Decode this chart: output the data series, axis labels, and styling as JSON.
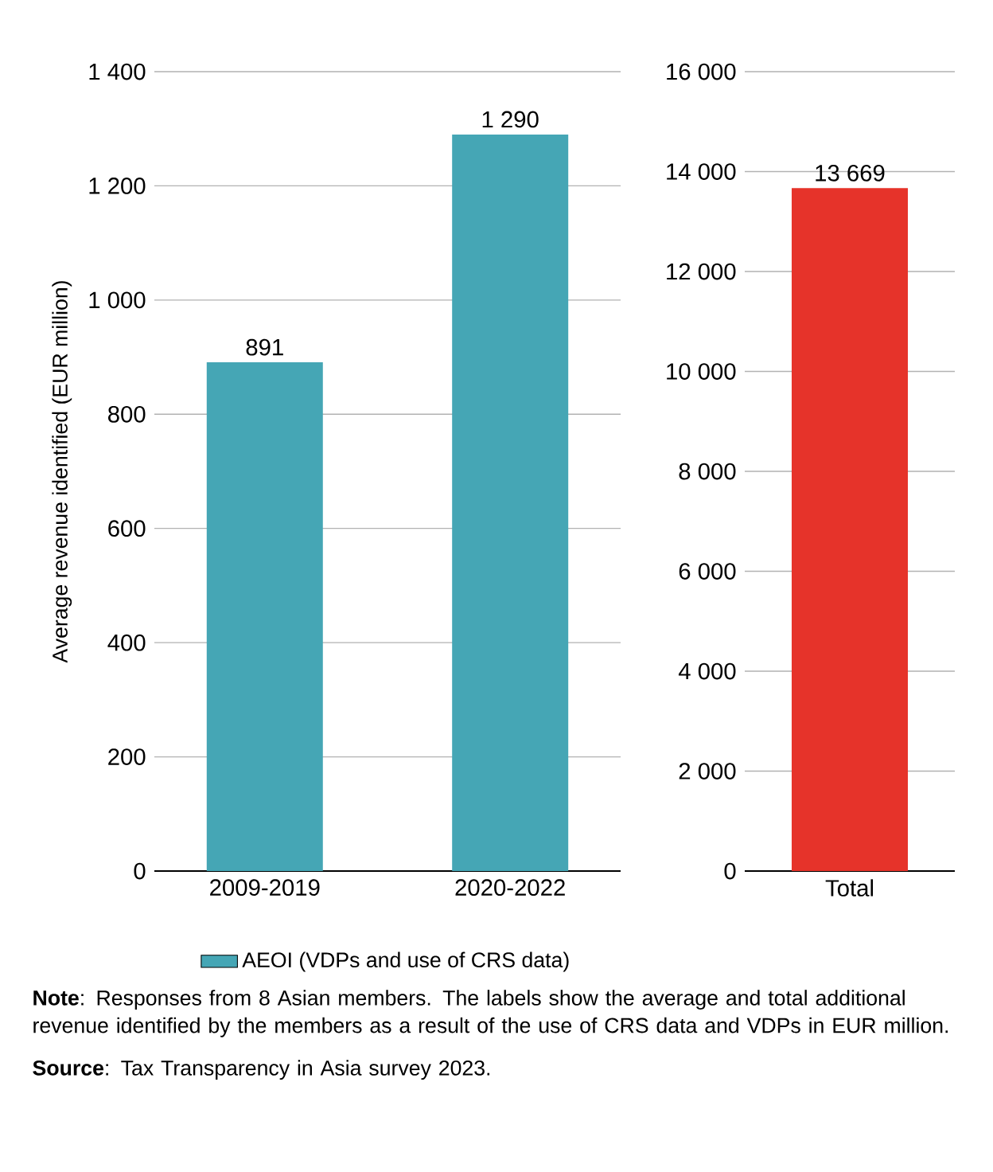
{
  "chart_data": [
    {
      "type": "bar",
      "categories": [
        "2009-2019",
        "2020-2022"
      ],
      "ylabel": "Average revenue identified (EUR million)",
      "series": [
        {
          "name": "AEOI (VDPs and use of CRS data)",
          "color": "#45a6b5",
          "values": [
            891,
            1290
          ],
          "value_labels": [
            "891",
            "1 290"
          ]
        }
      ],
      "ylim": [
        0,
        1400
      ],
      "yticks": [
        0,
        200,
        400,
        600,
        800,
        {
          "value": 1000,
          "label": "1 000"
        },
        {
          "value": 1200,
          "label": "1 200"
        },
        {
          "value": 1400,
          "label": "1 400"
        }
      ],
      "grid": "y",
      "legend": "bottom",
      "annotations": [
        "**Note**: Responses from 8 Asian members. The labels show the average and total additional revenue identified  by the members as a result of the use of CRS data and VDPs in EUR million.",
        "**Source**: Tax Transparency in Asia survey 2023."
      ]
    },
    {
      "type": "bar",
      "categories": [
        "Total"
      ],
      "values": [
        13669
      ],
      "value_labels": [
        "13 669"
      ],
      "color": "#e6332a",
      "ylim": [
        0,
        16000
      ],
      "yticks": [
        0,
        {
          "value": 2000,
          "label": "2 000"
        },
        {
          "value": 4000,
          "label": "4 000"
        },
        {
          "value": 6000,
          "label": "6 000"
        },
        {
          "value": 8000,
          "label": "8 000"
        },
        {
          "value": 10000,
          "label": "10 000"
        },
        {
          "value": 12000,
          "label": "12 000"
        },
        {
          "value": 14000,
          "label": "14 000"
        },
        {
          "value": 16000,
          "label": "16 000"
        }
      ],
      "grid": "y"
    }
  ]
}
